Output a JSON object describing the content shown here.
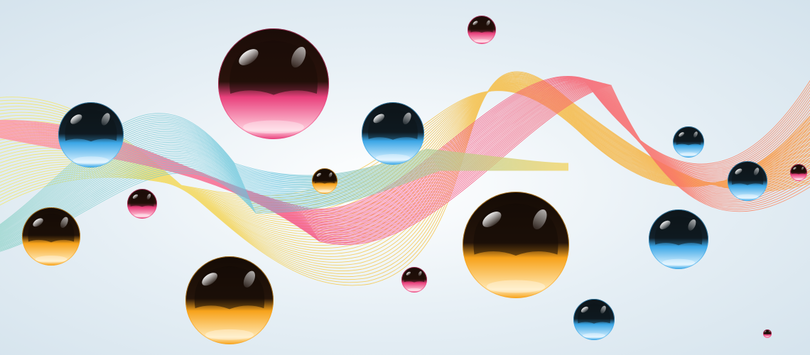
{
  "scene": {
    "background": [
      "#ffffff",
      "#e6eff5",
      "#d3e2ec"
    ],
    "ribbons": [
      {
        "name": "yellow-ribbon",
        "colors": [
          "#f3ea6a",
          "#f5c54a",
          "#f7a63a"
        ]
      },
      {
        "name": "magenta-ribbon",
        "colors": [
          "#ff9aa5",
          "#f2427f",
          "#ff8f5a"
        ]
      },
      {
        "name": "cyan-ribbon",
        "colors": [
          "#8fd3c6",
          "#62c3de",
          "#f3d35c"
        ]
      }
    ],
    "sphere_colors": {
      "magenta": {
        "top": "#1a0c08",
        "mid": "#2a120b",
        "bottom": "#e9407c",
        "glow": "#ffd0de"
      },
      "blue": {
        "top": "#0d1418",
        "mid": "#12202a",
        "bottom": "#3aa6e6",
        "glow": "#d6f0ff"
      },
      "orange": {
        "top": "#140b05",
        "mid": "#24140a",
        "bottom": "#f7a21a",
        "glow": "#ffe9b5"
      }
    },
    "spheres": [
      {
        "color": "magenta"
      },
      {
        "color": "blue"
      },
      {
        "color": "blue"
      },
      {
        "color": "magenta"
      },
      {
        "color": "orange"
      },
      {
        "color": "magenta"
      },
      {
        "color": "orange"
      },
      {
        "color": "blue"
      },
      {
        "color": "blue"
      },
      {
        "color": "orange"
      },
      {
        "color": "magenta"
      },
      {
        "color": "blue"
      },
      {
        "color": "orange"
      },
      {
        "color": "magenta"
      },
      {
        "color": "blue"
      },
      {
        "color": "magenta"
      }
    ]
  }
}
